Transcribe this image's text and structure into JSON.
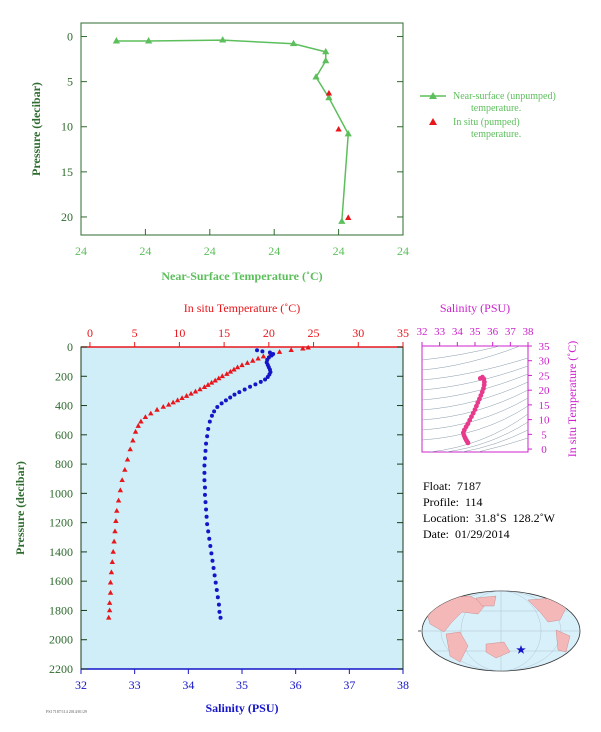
{
  "colors": {
    "near_surface": "#5cbf5c",
    "insitu_temp": "#e8161b",
    "salinity": "#1515c8",
    "magenta": "#cc22cc",
    "axis_green": "#2e6b2e",
    "plot_bg": "#cfeef8",
    "dark_axis": "#1a3a1a"
  },
  "chart_data": [
    {
      "id": "near-surface",
      "type": "line",
      "xlabel": "Near-Surface Temperature (˚C)",
      "ylabel": "Pressure (decibar)",
      "xlim": [
        0,
        1
      ],
      "ylim": [
        22,
        -1.5
      ],
      "x_tick_labels": [
        "24",
        "24",
        "24",
        "24",
        "24",
        "24"
      ],
      "y_ticks": [
        0,
        5,
        10,
        15,
        20
      ],
      "series": [
        {
          "name": "Near-surface (unpumped) temperature.",
          "marker": "triangle",
          "points": [
            [
              0.11,
              0.5
            ],
            [
              0.21,
              0.5
            ],
            [
              0.44,
              0.4
            ],
            [
              0.66,
              0.8
            ],
            [
              0.76,
              1.7
            ],
            [
              0.76,
              2.7
            ],
            [
              0.73,
              4.5
            ],
            [
              0.77,
              6.8
            ],
            [
              0.83,
              10.8
            ],
            [
              0.81,
              20.5
            ]
          ]
        },
        {
          "name": "In situ (pumped) temperature.",
          "marker": "triangle",
          "points": [
            [
              0.77,
              6.3
            ],
            [
              0.8,
              10.3
            ],
            [
              0.83,
              20.1
            ]
          ]
        }
      ]
    },
    {
      "id": "profile",
      "type": "scatter",
      "ylabel": "Pressure (decibar)",
      "top_xlabel": "In situ Temperature (˚C)",
      "bottom_xlabel": "Salinity (PSU)",
      "temp_ticks": [
        0,
        5,
        10,
        15,
        20,
        25,
        30,
        35
      ],
      "sal_ticks": [
        32,
        33,
        34,
        35,
        36,
        37,
        38
      ],
      "y_ticks": [
        0,
        200,
        400,
        600,
        800,
        1000,
        1200,
        1400,
        1600,
        1800,
        2000,
        2200
      ],
      "temp_range": [
        -1,
        35
      ],
      "sal_range": [
        32,
        38
      ],
      "p_range": [
        0,
        2200
      ],
      "temperature": [
        [
          24.4,
          5
        ],
        [
          23.8,
          12
        ],
        [
          22.5,
          22
        ],
        [
          21.2,
          35
        ],
        [
          20.2,
          50
        ],
        [
          19.4,
          65
        ],
        [
          18.8,
          80
        ],
        [
          18.2,
          95
        ],
        [
          17.6,
          110
        ],
        [
          17.0,
          125
        ],
        [
          16.5,
          140
        ],
        [
          16.1,
          155
        ],
        [
          15.7,
          170
        ],
        [
          15.3,
          185
        ],
        [
          14.8,
          200
        ],
        [
          14.4,
          215
        ],
        [
          14.0,
          230
        ],
        [
          13.6,
          245
        ],
        [
          13.2,
          260
        ],
        [
          12.8,
          275
        ],
        [
          12.3,
          290
        ],
        [
          11.8,
          305
        ],
        [
          11.3,
          320
        ],
        [
          10.8,
          335
        ],
        [
          10.3,
          350
        ],
        [
          9.8,
          365
        ],
        [
          9.3,
          380
        ],
        [
          8.8,
          395
        ],
        [
          8.2,
          410
        ],
        [
          7.5,
          430
        ],
        [
          6.8,
          455
        ],
        [
          6.2,
          480
        ],
        [
          5.7,
          510
        ],
        [
          5.4,
          540
        ],
        [
          5.1,
          580
        ],
        [
          4.8,
          640
        ],
        [
          4.5,
          700
        ],
        [
          4.2,
          770
        ],
        [
          3.9,
          840
        ],
        [
          3.6,
          910
        ],
        [
          3.4,
          980
        ],
        [
          3.2,
          1050
        ],
        [
          3.0,
          1120
        ],
        [
          2.9,
          1190
        ],
        [
          2.8,
          1260
        ],
        [
          2.7,
          1330
        ],
        [
          2.6,
          1400
        ],
        [
          2.5,
          1470
        ],
        [
          2.4,
          1540
        ],
        [
          2.3,
          1610
        ],
        [
          2.3,
          1680
        ],
        [
          2.2,
          1750
        ],
        [
          2.2,
          1800
        ],
        [
          2.1,
          1850
        ]
      ],
      "salinity": [
        [
          35.28,
          22
        ],
        [
          35.38,
          30
        ],
        [
          35.52,
          38
        ],
        [
          35.58,
          48
        ],
        [
          35.55,
          58
        ],
        [
          35.5,
          72
        ],
        [
          35.47,
          88
        ],
        [
          35.46,
          105
        ],
        [
          35.48,
          122
        ],
        [
          35.5,
          138
        ],
        [
          35.52,
          155
        ],
        [
          35.53,
          172
        ],
        [
          35.51,
          188
        ],
        [
          35.48,
          205
        ],
        [
          35.43,
          222
        ],
        [
          35.35,
          238
        ],
        [
          35.25,
          255
        ],
        [
          35.15,
          272
        ],
        [
          35.05,
          290
        ],
        [
          34.95,
          308
        ],
        [
          34.86,
          325
        ],
        [
          34.78,
          345
        ],
        [
          34.7,
          365
        ],
        [
          34.62,
          385
        ],
        [
          34.54,
          410
        ],
        [
          34.48,
          440
        ],
        [
          34.44,
          470
        ],
        [
          34.4,
          510
        ],
        [
          34.37,
          560
        ],
        [
          34.35,
          610
        ],
        [
          34.33,
          660
        ],
        [
          34.32,
          710
        ],
        [
          34.31,
          760
        ],
        [
          34.3,
          810
        ],
        [
          34.3,
          860
        ],
        [
          34.3,
          910
        ],
        [
          34.31,
          960
        ],
        [
          34.31,
          1010
        ],
        [
          34.32,
          1060
        ],
        [
          34.33,
          1110
        ],
        [
          34.34,
          1160
        ],
        [
          34.35,
          1210
        ],
        [
          34.37,
          1260
        ],
        [
          34.39,
          1310
        ],
        [
          34.41,
          1360
        ],
        [
          34.43,
          1410
        ],
        [
          34.45,
          1460
        ],
        [
          34.47,
          1510
        ],
        [
          34.49,
          1560
        ],
        [
          34.51,
          1610
        ],
        [
          34.53,
          1660
        ],
        [
          34.55,
          1710
        ],
        [
          34.57,
          1760
        ],
        [
          34.58,
          1810
        ],
        [
          34.6,
          1850
        ]
      ]
    },
    {
      "id": "ts-diagram",
      "type": "scatter",
      "xlabel": "Salinity (PSU)",
      "ylabel": "In situ Temperature (˚C)",
      "x_ticks": [
        32,
        33,
        34,
        35,
        36,
        37,
        38
      ],
      "y_ticks": [
        0,
        5,
        10,
        15,
        20,
        25,
        30,
        35
      ],
      "xlim": [
        32,
        38
      ],
      "ylim": [
        -1,
        35
      ],
      "points": [
        [
          34.6,
          2.1
        ],
        [
          34.55,
          2.6
        ],
        [
          34.5,
          3.1
        ],
        [
          34.44,
          3.8
        ],
        [
          34.38,
          4.6
        ],
        [
          34.34,
          5.5
        ],
        [
          34.4,
          6.5
        ],
        [
          34.5,
          7.6
        ],
        [
          34.6,
          8.6
        ],
        [
          34.7,
          9.8
        ],
        [
          34.8,
          11.0
        ],
        [
          34.9,
          12.2
        ],
        [
          35.0,
          13.4
        ],
        [
          35.08,
          14.6
        ],
        [
          35.16,
          15.8
        ],
        [
          35.25,
          17.0
        ],
        [
          35.33,
          18.2
        ],
        [
          35.41,
          19.4
        ],
        [
          35.48,
          20.6
        ],
        [
          35.52,
          21.8
        ],
        [
          35.53,
          22.8
        ],
        [
          35.5,
          23.8
        ],
        [
          35.42,
          24.4
        ],
        [
          35.3,
          24.0
        ]
      ]
    }
  ],
  "info": {
    "float": "Float:  7187",
    "profile": "Profile:  114",
    "location": "Location:  31.8˚S  128.2˚W",
    "date": "Date:  01/29/2014"
  },
  "footnote": "FSI 7187/114  2014/01/29"
}
